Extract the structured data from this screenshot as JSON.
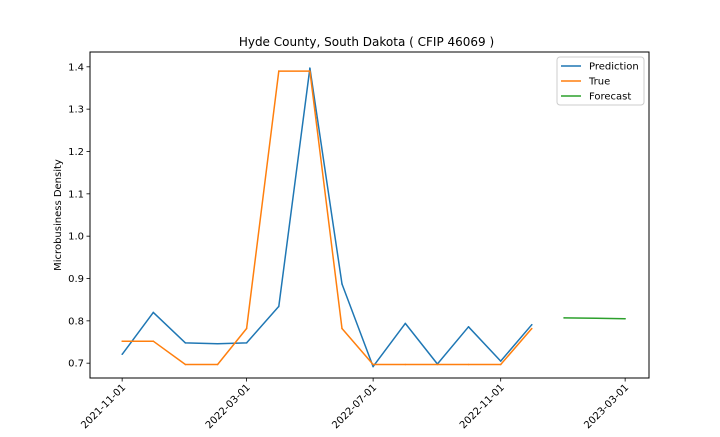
{
  "chart_data": {
    "type": "line",
    "title": "Hyde County, South Dakota ( CFIP 46069 )",
    "xlabel": "",
    "ylabel": "Microbusiness Density",
    "x_ticks": [
      "2021-11-01",
      "2022-03-01",
      "2022-07-01",
      "2022-11-01",
      "2023-03-01"
    ],
    "y_ticks": [
      "0.7",
      "0.8",
      "0.9",
      "1.0",
      "1.1",
      "1.2",
      "1.3",
      "1.4"
    ],
    "xlim": [
      "2021-10-01",
      "2023-03-24"
    ],
    "ylim": [
      0.665,
      1.435
    ],
    "grid": false,
    "legend_position": "top-right",
    "series": [
      {
        "name": "Prediction",
        "color": "#1f77b4",
        "points": [
          {
            "x": "2021-11-01",
            "y": 0.721
          },
          {
            "x": "2021-12-01",
            "y": 0.82
          },
          {
            "x": "2022-01-01",
            "y": 0.748
          },
          {
            "x": "2022-02-01",
            "y": 0.746
          },
          {
            "x": "2022-03-01",
            "y": 0.748
          },
          {
            "x": "2022-04-01",
            "y": 0.834
          },
          {
            "x": "2022-05-01",
            "y": 1.397
          },
          {
            "x": "2022-06-01",
            "y": 0.887
          },
          {
            "x": "2022-07-01",
            "y": 0.692
          },
          {
            "x": "2022-08-01",
            "y": 0.794
          },
          {
            "x": "2022-09-01",
            "y": 0.698
          },
          {
            "x": "2022-10-01",
            "y": 0.786
          },
          {
            "x": "2022-11-01",
            "y": 0.705
          },
          {
            "x": "2022-12-01",
            "y": 0.791
          }
        ]
      },
      {
        "name": "True",
        "color": "#ff7f0e",
        "points": [
          {
            "x": "2021-11-01",
            "y": 0.752
          },
          {
            "x": "2021-12-01",
            "y": 0.752
          },
          {
            "x": "2022-01-01",
            "y": 0.697
          },
          {
            "x": "2022-02-01",
            "y": 0.697
          },
          {
            "x": "2022-03-01",
            "y": 0.782
          },
          {
            "x": "2022-04-01",
            "y": 1.39
          },
          {
            "x": "2022-05-01",
            "y": 1.39
          },
          {
            "x": "2022-06-01",
            "y": 0.782
          },
          {
            "x": "2022-07-01",
            "y": 0.697
          },
          {
            "x": "2022-08-01",
            "y": 0.697
          },
          {
            "x": "2022-09-01",
            "y": 0.697
          },
          {
            "x": "2022-10-01",
            "y": 0.697
          },
          {
            "x": "2022-11-01",
            "y": 0.697
          },
          {
            "x": "2022-12-01",
            "y": 0.782
          }
        ]
      },
      {
        "name": "Forecast",
        "color": "#2ca02c",
        "points": [
          {
            "x": "2023-01-01",
            "y": 0.807
          },
          {
            "x": "2023-02-01",
            "y": 0.806
          },
          {
            "x": "2023-03-01",
            "y": 0.805
          }
        ]
      }
    ]
  }
}
